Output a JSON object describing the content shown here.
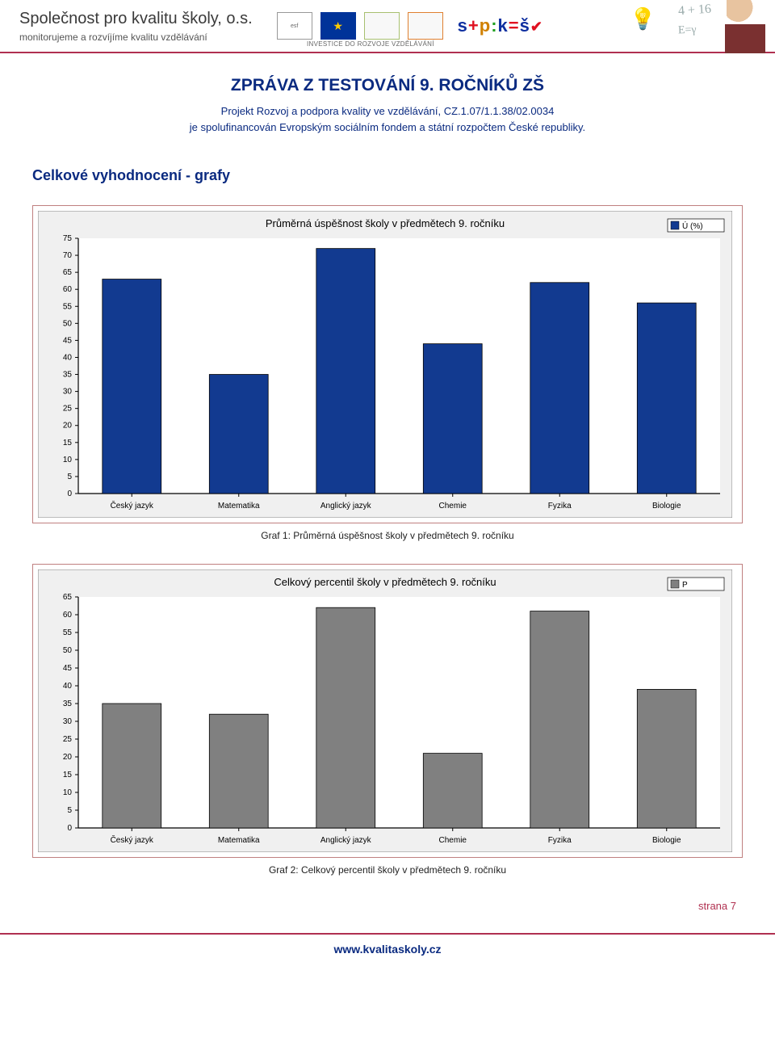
{
  "header": {
    "org_title": "Společnost pro kvalitu školy, o.s.",
    "org_sub": "monitorujeme a rozvíjíme kvalitu vzdělávání",
    "investice_line": "INVESTICE DO ROZVOJE VZDĚLÁVÁNÍ",
    "spks_s1": "s",
    "spks_plus": "+",
    "spks_p": "p",
    "spks_colon": ":",
    "spks_k": "k",
    "spks_eq": "=",
    "spks_sv": "š",
    "spks_check": "✔",
    "hw1": "4 + 16",
    "hw2": "E=γ"
  },
  "report": {
    "title": "ZPRÁVA Z TESTOVÁNÍ 9. ROČNÍKŮ ZŠ",
    "sub_line1": "Projekt Rozvoj a podpora kvality ve vzdělávání, CZ.1.07/1.1.38/02.0034",
    "sub_line2": "je spolufinancován Evropským sociálním fondem a státní rozpočtem České republiky."
  },
  "section_title": "Celkové vyhodnocení - grafy",
  "chart1": {
    "type": "bar",
    "title": "Průměrná úspěšnost školy v předmětech 9. ročníku",
    "legend_label": "Ú (%)",
    "legend_color": "#123a90",
    "title_fontsize": 13,
    "categories": [
      "Český jazyk",
      "Matematika",
      "Anglický jazyk",
      "Chemie",
      "Fyzika",
      "Biologie"
    ],
    "values": [
      63,
      35,
      72,
      44,
      62,
      56
    ],
    "bar_color": "#123a90",
    "bar_border": "#000000",
    "ylim": [
      0,
      75
    ],
    "ytick_step": 5,
    "background_color": "#f0f0f0",
    "plot_bg": "#ffffff",
    "axis_color": "#000000",
    "label_fontsize": 10,
    "tick_fontsize": 10,
    "bar_width": 0.55,
    "caption": "Graf 1: Průměrná úspěšnost školy v předmětech 9. ročníku"
  },
  "chart2": {
    "type": "bar",
    "title": "Celkový percentil školy v předmětech 9. ročníku",
    "legend_label": "P",
    "legend_color": "#808080",
    "title_fontsize": 13,
    "categories": [
      "Český jazyk",
      "Matematika",
      "Anglický jazyk",
      "Chemie",
      "Fyzika",
      "Biologie"
    ],
    "values": [
      35,
      32,
      62,
      21,
      61,
      39
    ],
    "bar_color": "#808080",
    "bar_border": "#000000",
    "ylim": [
      0,
      65
    ],
    "ytick_step": 5,
    "background_color": "#f0f0f0",
    "plot_bg": "#ffffff",
    "axis_color": "#000000",
    "label_fontsize": 10,
    "tick_fontsize": 10,
    "bar_width": 0.55,
    "caption": "Graf 2: Celkový percentil školy v předmětech 9. ročníku"
  },
  "page_num": "strana 7",
  "footer_url": "www.kvalitaskoly.cz"
}
